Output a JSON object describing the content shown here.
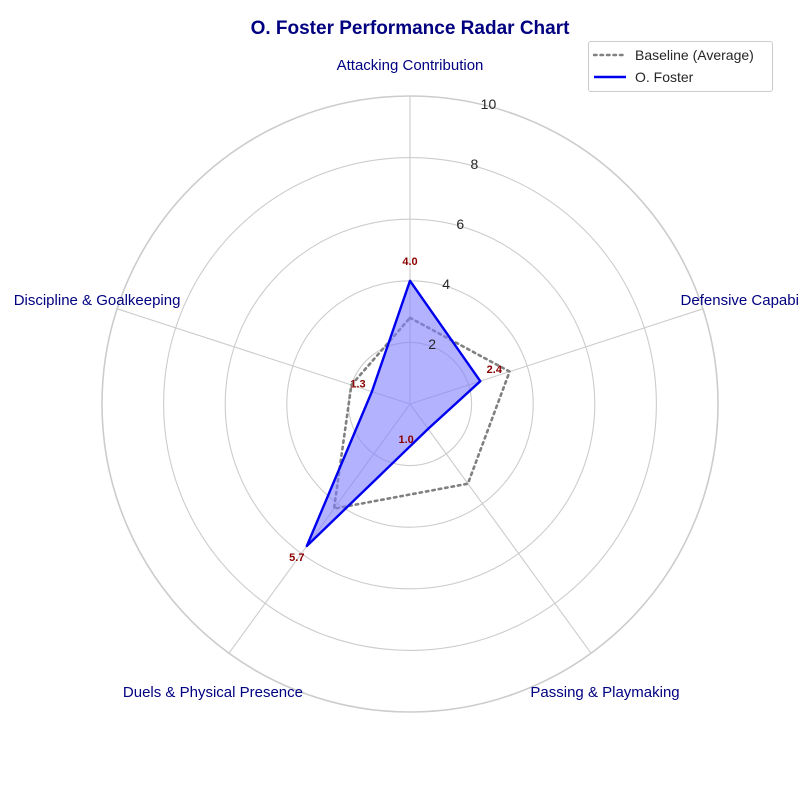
{
  "chart_data": {
    "type": "radar",
    "title": "O. Foster Performance Radar Chart",
    "categories": [
      "Attacking Contribution",
      "Defensive Capability",
      "Passing & Playmaking",
      "Duels & Physical Presence",
      "Discipline & Goalkeeping"
    ],
    "rlim": [
      0,
      10
    ],
    "r_ticks": [
      2,
      4,
      6,
      8,
      10
    ],
    "series": [
      {
        "name": "Baseline (Average)",
        "values": [
          2.8,
          3.4,
          3.2,
          4.2,
          2.0
        ],
        "style": "dotted",
        "color": "#808080"
      },
      {
        "name": "O. Foster",
        "values": [
          4.0,
          2.4,
          1.0,
          5.7,
          1.3
        ],
        "style": "solid",
        "color": "#0000ee",
        "fill": "#7f7fff"
      }
    ],
    "data_labels": [
      "4.0",
      "2.4",
      "1.0",
      "5.7",
      "1.3"
    ],
    "legend_position": "top-right",
    "grid": true
  }
}
